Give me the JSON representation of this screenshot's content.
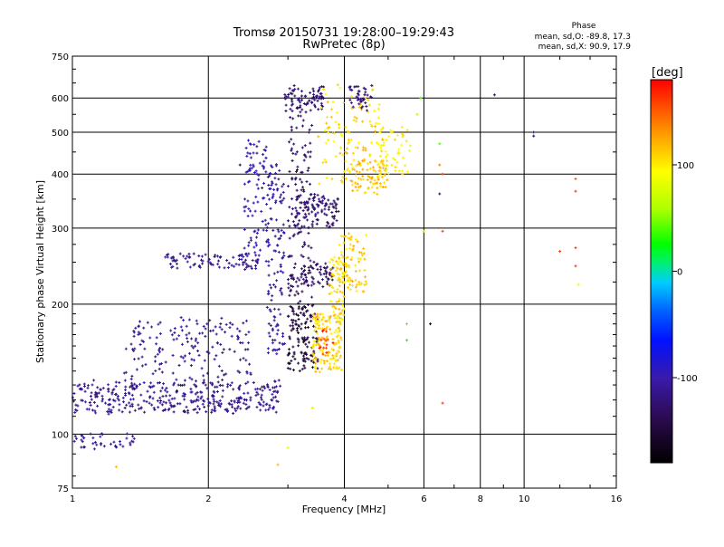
{
  "header": {
    "title_line1": "Tromsø 20150731 19:28:00–19:29:43",
    "title_line2": "RwPretec (8p)"
  },
  "phase_stats": {
    "heading": "Phase",
    "line_o": "mean, sd,O: -89.8, 17.3",
    "line_x": "mean, sd,X:  90.9, 17.9"
  },
  "chart_data": {
    "type": "scatter",
    "xlabel": "Frequency [MHz]",
    "ylabel": "Stationary phase Virtual Height [km]",
    "xscale": "log",
    "yscale": "log",
    "xlim": [
      1,
      16
    ],
    "ylim": [
      75,
      750
    ],
    "xticks": [
      1,
      2,
      4,
      6,
      8,
      10,
      16
    ],
    "yticks": [
      75,
      100,
      200,
      300,
      400,
      500,
      600,
      750
    ],
    "grid": true,
    "colorbar": {
      "label": "[deg]",
      "range": [
        -180,
        180
      ],
      "ticks": [
        100,
        0,
        -100
      ]
    },
    "clusters": [
      {
        "f0": 1.0,
        "f1": 2.9,
        "h0": 112,
        "h1": 133,
        "phase": -112,
        "n": 380,
        "spreadH": 8
      },
      {
        "f0": 1.0,
        "f1": 1.4,
        "h0": 93,
        "h1": 100,
        "phase": -108,
        "n": 40,
        "spreadH": 6
      },
      {
        "f0": 1.3,
        "f1": 2.5,
        "h0": 135,
        "h1": 185,
        "phase": -112,
        "n": 160,
        "spreadH": 12
      },
      {
        "f0": 1.6,
        "f1": 2.6,
        "h0": 240,
        "h1": 262,
        "phase": -110,
        "n": 90,
        "spreadH": 10
      },
      {
        "f0": 2.4,
        "f1": 2.7,
        "h0": 250,
        "h1": 480,
        "phase": -100,
        "n": 90,
        "spreadH": 20
      },
      {
        "f0": 2.7,
        "f1": 2.95,
        "h0": 150,
        "h1": 420,
        "phase": -105,
        "n": 130,
        "spreadH": 20
      },
      {
        "f0": 3.0,
        "f1": 3.4,
        "h0": 180,
        "h1": 560,
        "phase": -130,
        "n": 150,
        "spreadH": 25
      },
      {
        "f0": 2.95,
        "f1": 3.6,
        "h0": 560,
        "h1": 640,
        "phase": -125,
        "n": 80,
        "spreadH": 20
      },
      {
        "f0": 3.1,
        "f1": 3.9,
        "h0": 300,
        "h1": 360,
        "phase": -125,
        "n": 110,
        "spreadH": 20
      },
      {
        "f0": 3.2,
        "f1": 3.8,
        "h0": 220,
        "h1": 250,
        "phase": -130,
        "n": 60,
        "spreadH": 10
      },
      {
        "f0": 3.0,
        "f1": 3.5,
        "h0": 140,
        "h1": 200,
        "phase": -150,
        "n": 120,
        "spreadH": 12
      },
      {
        "f0": 3.4,
        "f1": 3.95,
        "h0": 140,
        "h1": 190,
        "phase": 110,
        "n": 150,
        "spreadH": 10
      },
      {
        "f0": 3.7,
        "f1": 4.0,
        "h0": 180,
        "h1": 260,
        "phase": 108,
        "n": 60,
        "spreadH": 10
      },
      {
        "f0": 3.9,
        "f1": 4.5,
        "h0": 215,
        "h1": 290,
        "phase": 112,
        "n": 90,
        "spreadH": 15
      },
      {
        "f0": 3.5,
        "f1": 4.9,
        "h0": 380,
        "h1": 640,
        "phase": 108,
        "n": 130,
        "spreadH": 30
      },
      {
        "f0": 4.1,
        "f1": 4.6,
        "h0": 560,
        "h1": 640,
        "phase": -120,
        "n": 40,
        "spreadH": 20
      },
      {
        "f0": 4.1,
        "f1": 5.0,
        "h0": 360,
        "h1": 430,
        "phase": 115,
        "n": 70,
        "spreadH": 20
      },
      {
        "f0": 4.8,
        "f1": 5.6,
        "h0": 400,
        "h1": 520,
        "phase": 95,
        "n": 50,
        "spreadH": 25
      },
      {
        "f0": 3.5,
        "f1": 3.8,
        "h0": 150,
        "h1": 175,
        "phase": 160,
        "n": 15,
        "spreadH": 8
      }
    ],
    "isolated_points": [
      {
        "f": 1.25,
        "h": 84,
        "phase": 120
      },
      {
        "f": 2.85,
        "h": 85,
        "phase": 120
      },
      {
        "f": 3.0,
        "h": 93,
        "phase": 80
      },
      {
        "f": 3.4,
        "h": 115,
        "phase": 70
      },
      {
        "f": 2.35,
        "h": 420,
        "phase": -150
      },
      {
        "f": 5.5,
        "h": 165,
        "phase": 30
      },
      {
        "f": 5.5,
        "h": 180,
        "phase": 40
      },
      {
        "f": 6.2,
        "h": 180,
        "phase": -150
      },
      {
        "f": 6.0,
        "h": 295,
        "phase": 60
      },
      {
        "f": 6.6,
        "h": 118,
        "phase": 160
      },
      {
        "f": 6.6,
        "h": 295,
        "phase": 160
      },
      {
        "f": 6.5,
        "h": 470,
        "phase": 40
      },
      {
        "f": 6.5,
        "h": 420,
        "phase": 140
      },
      {
        "f": 6.6,
        "h": 400,
        "phase": 160
      },
      {
        "f": 6.5,
        "h": 360,
        "phase": -120
      },
      {
        "f": 8.6,
        "h": 610,
        "phase": -130
      },
      {
        "f": 10.5,
        "h": 500,
        "phase": -130
      },
      {
        "f": 10.5,
        "h": 490,
        "phase": -130
      },
      {
        "f": 13.0,
        "h": 390,
        "phase": 150
      },
      {
        "f": 13.0,
        "h": 365,
        "phase": 160
      },
      {
        "f": 13.0,
        "h": 270,
        "phase": 160
      },
      {
        "f": 13.0,
        "h": 245,
        "phase": 160
      },
      {
        "f": 13.2,
        "h": 222,
        "phase": 100
      },
      {
        "f": 12.0,
        "h": 265,
        "phase": 160
      },
      {
        "f": 5.9,
        "h": 600,
        "phase": 40
      },
      {
        "f": 5.8,
        "h": 550,
        "phase": 60
      }
    ]
  }
}
